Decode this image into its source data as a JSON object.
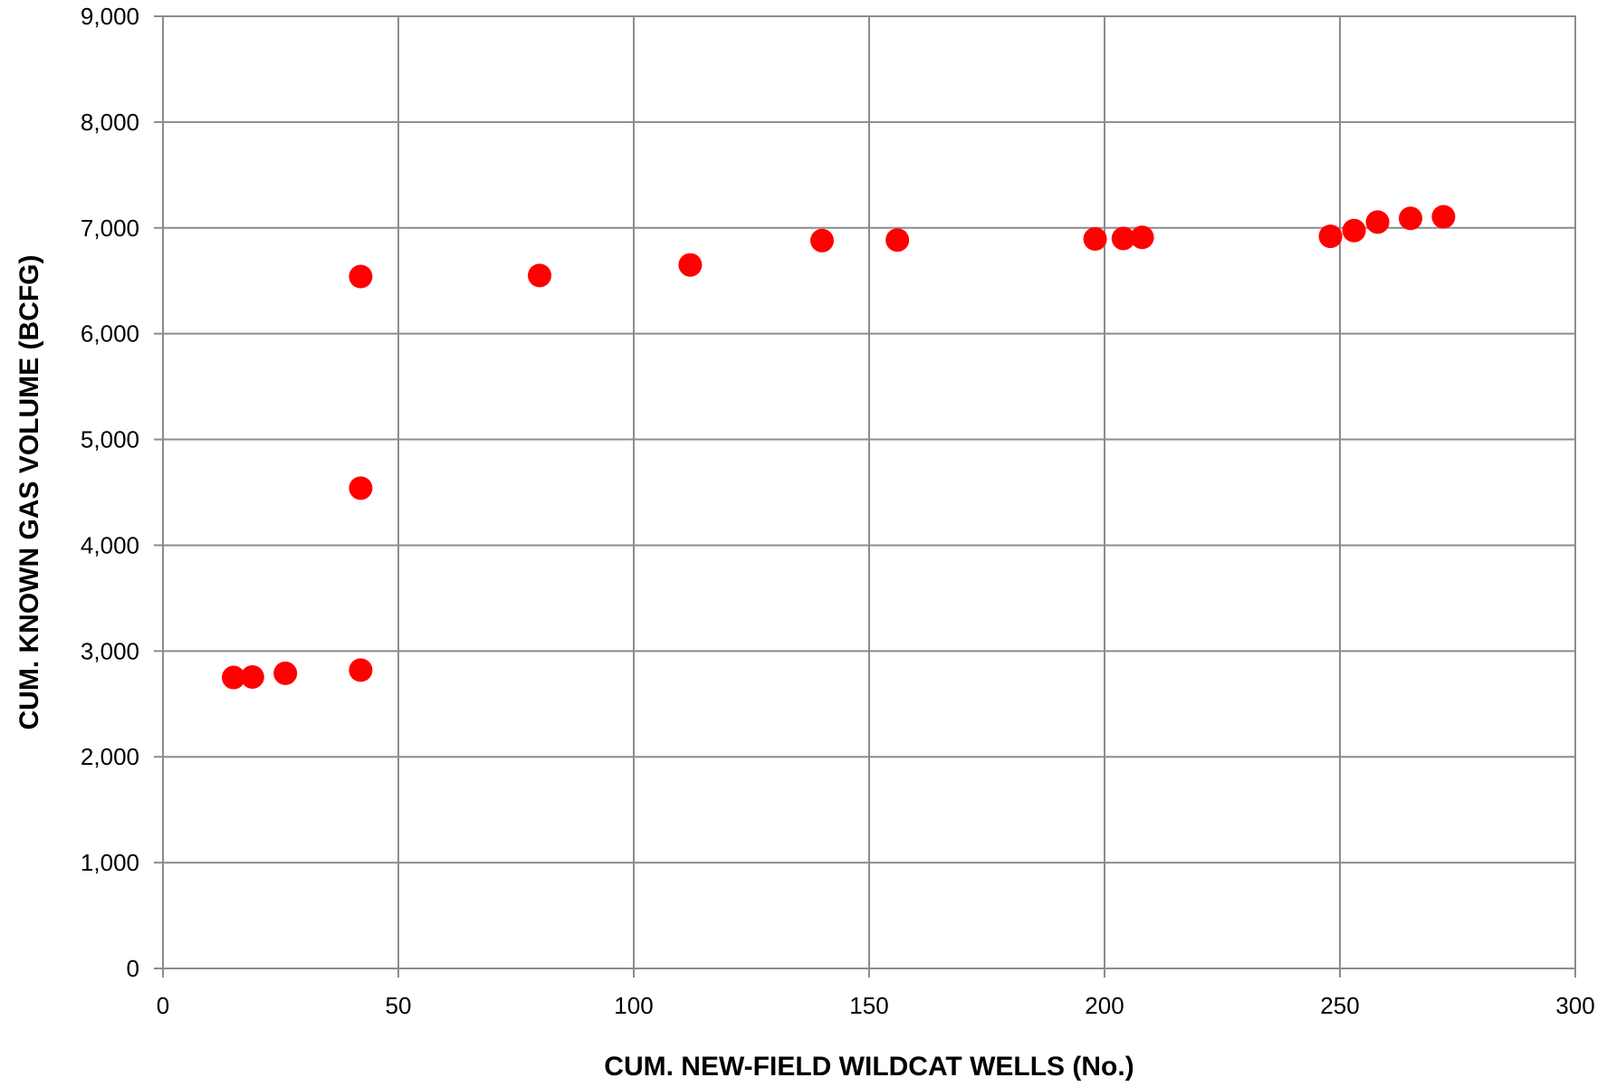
{
  "chart_data": {
    "type": "scatter",
    "title": "",
    "xlabel": "CUM. NEW-FIELD WILDCAT WELLS (No.)",
    "ylabel": "CUM. KNOWN GAS VOLUME (BCFG)",
    "xlim": [
      0,
      300
    ],
    "ylim": [
      0,
      9000
    ],
    "x_ticks": [
      0,
      50,
      100,
      150,
      200,
      250,
      300
    ],
    "y_ticks": [
      0,
      1000,
      2000,
      3000,
      4000,
      5000,
      6000,
      7000,
      8000,
      9000
    ],
    "x_tick_labels": [
      "0",
      "50",
      "100",
      "150",
      "200",
      "250",
      "300"
    ],
    "y_tick_labels": [
      "0",
      "1,000",
      "2,000",
      "3,000",
      "4,000",
      "5,000",
      "6,000",
      "7,000",
      "8,000",
      "9,000"
    ],
    "grid": true,
    "legend": false,
    "marker_color": "#ff0000",
    "series": [
      {
        "points": [
          {
            "x": 15,
            "y": 2750
          },
          {
            "x": 19,
            "y": 2755
          },
          {
            "x": 26,
            "y": 2790
          },
          {
            "x": 42,
            "y": 2820
          },
          {
            "x": 42,
            "y": 4540
          },
          {
            "x": 42,
            "y": 6540
          },
          {
            "x": 80,
            "y": 6550
          },
          {
            "x": 112,
            "y": 6650
          },
          {
            "x": 140,
            "y": 6880
          },
          {
            "x": 156,
            "y": 6885
          },
          {
            "x": 198,
            "y": 6895
          },
          {
            "x": 204,
            "y": 6900
          },
          {
            "x": 208,
            "y": 6910
          },
          {
            "x": 248,
            "y": 6920
          },
          {
            "x": 253,
            "y": 6975
          },
          {
            "x": 258,
            "y": 7055
          },
          {
            "x": 265,
            "y": 7090
          },
          {
            "x": 272,
            "y": 7105
          }
        ]
      }
    ]
  }
}
